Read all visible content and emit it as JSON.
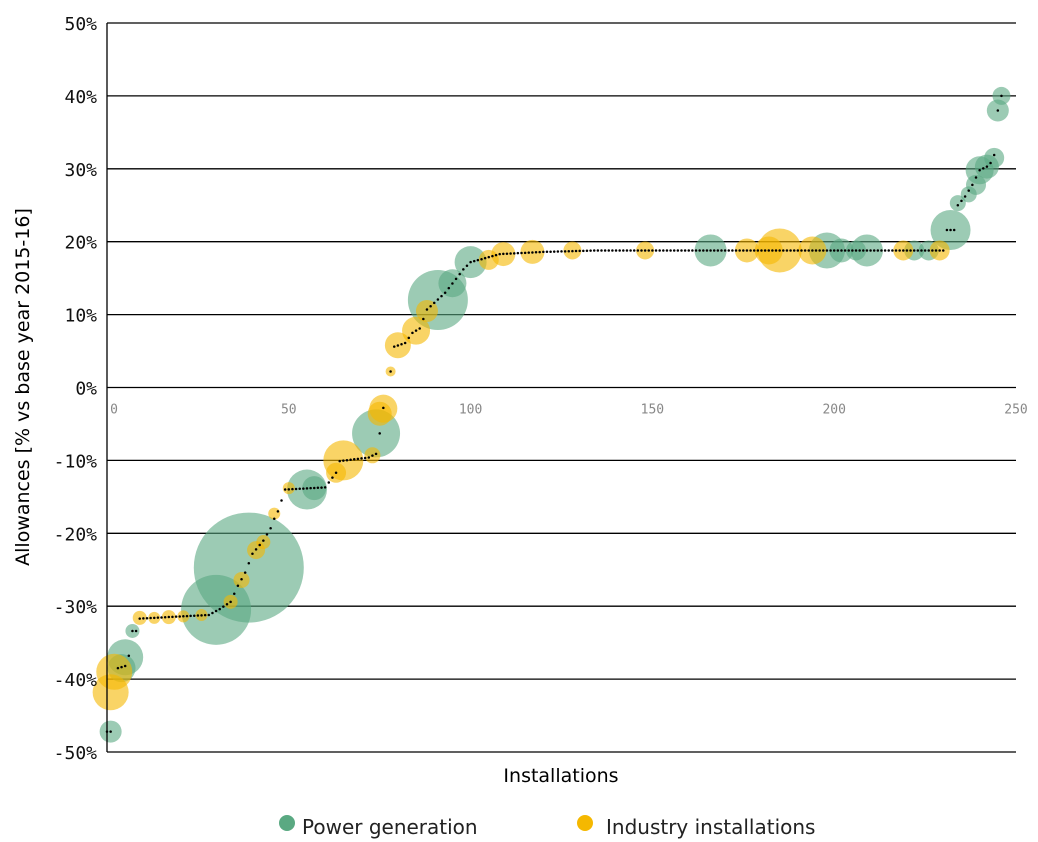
{
  "chart_data": {
    "type": "scatter",
    "title": "",
    "xlabel": "Installations",
    "ylabel": "Allowances [% vs base year 2015-16]",
    "xlim": [
      0,
      250
    ],
    "ylim": [
      -50,
      50
    ],
    "x_ticks": [
      0,
      50,
      100,
      150,
      200,
      250
    ],
    "y_ticks": [
      -50,
      -40,
      -30,
      -20,
      -10,
      0,
      10,
      20,
      30,
      40,
      50
    ],
    "y_tick_labels": [
      "-50%",
      "-40%",
      "-30%",
      "-20%",
      "-10%",
      "0%",
      "10%",
      "20%",
      "30%",
      "40%",
      "50%"
    ],
    "grid": "horizontal",
    "legend_position": "bottom",
    "colors": {
      "Power generation": "#5aa982",
      "Industry installations": "#f5b800"
    },
    "series": [
      {
        "name": "Power generation",
        "points": [
          {
            "x": 1,
            "y": -47.2,
            "s": 11
          },
          {
            "x": 4,
            "y": -38.5,
            "s": 14
          },
          {
            "x": 5,
            "y": -37,
            "s": 18
          },
          {
            "x": 7,
            "y": -33.4,
            "s": 7
          },
          {
            "x": 30,
            "y": -30.5,
            "s": 35
          },
          {
            "x": 39,
            "y": -24.7,
            "s": 55
          },
          {
            "x": 55,
            "y": -14,
            "s": 20
          },
          {
            "x": 57,
            "y": -13.8,
            "s": 12
          },
          {
            "x": 74,
            "y": -6.3,
            "s": 24
          },
          {
            "x": 91,
            "y": 12,
            "s": 30
          },
          {
            "x": 95,
            "y": 14.3,
            "s": 14
          },
          {
            "x": 100,
            "y": 17.2,
            "s": 16
          },
          {
            "x": 166,
            "y": 18.8,
            "s": 16
          },
          {
            "x": 198,
            "y": 18.8,
            "s": 18
          },
          {
            "x": 202,
            "y": 18.8,
            "s": 12
          },
          {
            "x": 206,
            "y": 18.8,
            "s": 10
          },
          {
            "x": 209,
            "y": 18.8,
            "s": 16
          },
          {
            "x": 222,
            "y": 18.8,
            "s": 10
          },
          {
            "x": 226,
            "y": 18.8,
            "s": 10
          },
          {
            "x": 232,
            "y": 21.6,
            "s": 20
          },
          {
            "x": 234,
            "y": 25.3,
            "s": 8
          },
          {
            "x": 237,
            "y": 26.5,
            "s": 8
          },
          {
            "x": 239,
            "y": 27.8,
            "s": 10
          },
          {
            "x": 240,
            "y": 29.8,
            "s": 14
          },
          {
            "x": 242,
            "y": 30.3,
            "s": 12
          },
          {
            "x": 244,
            "y": 31.5,
            "s": 10
          },
          {
            "x": 245,
            "y": 38,
            "s": 11
          },
          {
            "x": 246,
            "y": 40,
            "s": 9
          }
        ]
      },
      {
        "name": "Industry installations",
        "points": [
          {
            "x": 1,
            "y": -41.8,
            "s": 18
          },
          {
            "x": 2,
            "y": -39,
            "s": 18
          },
          {
            "x": 9,
            "y": -31.6,
            "s": 7
          },
          {
            "x": 13,
            "y": -31.6,
            "s": 6
          },
          {
            "x": 17,
            "y": -31.5,
            "s": 7
          },
          {
            "x": 21,
            "y": -31.4,
            "s": 6
          },
          {
            "x": 26,
            "y": -31.2,
            "s": 6
          },
          {
            "x": 34,
            "y": -29.4,
            "s": 7
          },
          {
            "x": 37,
            "y": -26.4,
            "s": 8
          },
          {
            "x": 41,
            "y": -22.3,
            "s": 9
          },
          {
            "x": 43,
            "y": -21.2,
            "s": 7
          },
          {
            "x": 46,
            "y": -17.3,
            "s": 6
          },
          {
            "x": 50,
            "y": -13.8,
            "s": 6
          },
          {
            "x": 63,
            "y": -11.7,
            "s": 10
          },
          {
            "x": 65,
            "y": -10,
            "s": 20
          },
          {
            "x": 73,
            "y": -9.3,
            "s": 8
          },
          {
            "x": 75,
            "y": -3.6,
            "s": 12
          },
          {
            "x": 76,
            "y": -2.9,
            "s": 14
          },
          {
            "x": 78,
            "y": 2.2,
            "s": 5
          },
          {
            "x": 80,
            "y": 5.8,
            "s": 13
          },
          {
            "x": 85,
            "y": 7.8,
            "s": 14
          },
          {
            "x": 88,
            "y": 10.5,
            "s": 11
          },
          {
            "x": 105,
            "y": 17.5,
            "s": 10
          },
          {
            "x": 109,
            "y": 18.3,
            "s": 12
          },
          {
            "x": 117,
            "y": 18.6,
            "s": 12
          },
          {
            "x": 128,
            "y": 18.8,
            "s": 9
          },
          {
            "x": 148,
            "y": 18.8,
            "s": 9
          },
          {
            "x": 176,
            "y": 18.8,
            "s": 12
          },
          {
            "x": 182,
            "y": 18.8,
            "s": 14
          },
          {
            "x": 185,
            "y": 18.8,
            "s": 22
          },
          {
            "x": 194,
            "y": 18.8,
            "s": 14
          },
          {
            "x": 219,
            "y": 18.8,
            "s": 10
          },
          {
            "x": 229,
            "y": 18.8,
            "s": 10
          }
        ]
      }
    ]
  },
  "legend": {
    "items": [
      {
        "label": "Power generation",
        "color": "#5aa982"
      },
      {
        "label": "Industry installations",
        "color": "#f5b800"
      }
    ]
  }
}
